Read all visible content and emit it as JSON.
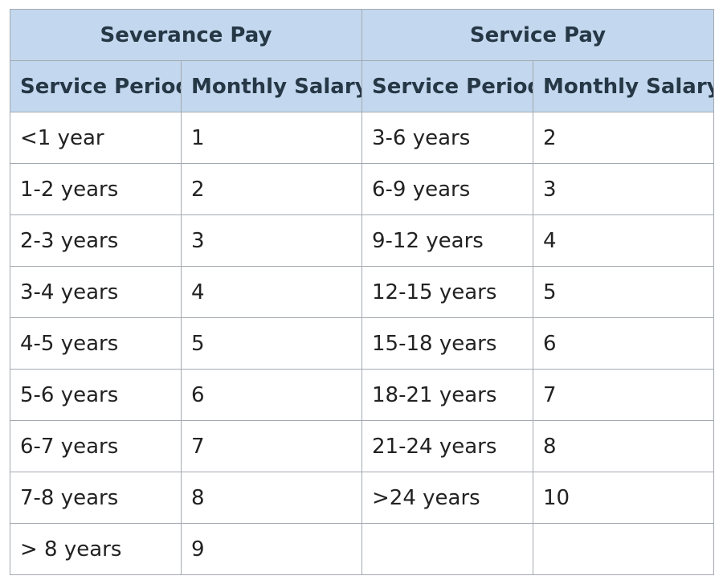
{
  "table": {
    "groups": [
      {
        "label": "Severance Pay"
      },
      {
        "label": "Service Pay"
      }
    ],
    "subheaders": [
      "Service Period",
      "Monthly Salary",
      "Service Period",
      "Monthly Salary"
    ],
    "rows": [
      {
        "sev_period": "<1 year",
        "sev_salary": "1",
        "svc_period": "3-6 years",
        "svc_salary": "2"
      },
      {
        "sev_period": "1-2 years",
        "sev_salary": "2",
        "svc_period": "6-9 years",
        "svc_salary": "3"
      },
      {
        "sev_period": "2-3 years",
        "sev_salary": "3",
        "svc_period": "9-12 years",
        "svc_salary": "4"
      },
      {
        "sev_period": "3-4 years",
        "sev_salary": "4",
        "svc_period": "12-15 years",
        "svc_salary": "5"
      },
      {
        "sev_period": "4-5 years",
        "sev_salary": "5",
        "svc_period": "15-18 years",
        "svc_salary": "6"
      },
      {
        "sev_period": "5-6 years",
        "sev_salary": "6",
        "svc_period": "18-21 years",
        "svc_salary": "7"
      },
      {
        "sev_period": "6-7 years",
        "sev_salary": "7",
        "svc_period": "21-24 years",
        "svc_salary": "8"
      },
      {
        "sev_period": "7-8 years",
        "sev_salary": "8",
        "svc_period": ">24 years",
        "svc_salary": "10"
      },
      {
        "sev_period": "> 8 years",
        "sev_salary": "9"
      }
    ]
  },
  "colors": {
    "header_bg": "#c3d8ee",
    "border": "#a3a9b0"
  }
}
